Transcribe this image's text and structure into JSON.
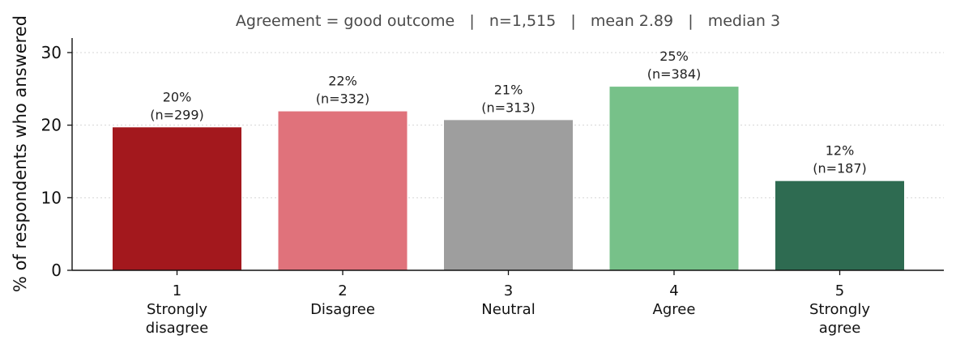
{
  "chart_data": {
    "type": "bar",
    "title": "Agreement = good outcome   |   n=1,515   |   mean 2.89   |   median 3",
    "ylabel": "% of respondents who answered",
    "xlabel": "",
    "ylim": [
      0,
      32
    ],
    "yticks": [
      "0",
      "10",
      "20",
      "30"
    ],
    "ytick_values": [
      0,
      10,
      20,
      30
    ],
    "grid": "horizontal dotted",
    "categories": [
      {
        "code": "1",
        "label_lines": [
          "Strongly",
          "disagree"
        ]
      },
      {
        "code": "2",
        "label_lines": [
          "Disagree"
        ]
      },
      {
        "code": "3",
        "label_lines": [
          "Neutral"
        ]
      },
      {
        "code": "4",
        "label_lines": [
          "Agree"
        ]
      },
      {
        "code": "5",
        "label_lines": [
          "Strongly",
          "agree"
        ]
      }
    ],
    "values": [
      19.7,
      21.9,
      20.7,
      25.3,
      12.3
    ],
    "counts": [
      299,
      332,
      313,
      384,
      187
    ],
    "data_labels": [
      [
        "20%",
        "(n=299)"
      ],
      [
        "22%",
        "(n=332)"
      ],
      [
        "21%",
        "(n=313)"
      ],
      [
        "25%",
        "(n=384)"
      ],
      [
        "12%",
        "(n=187)"
      ]
    ],
    "colors": [
      "#a3181d",
      "#e0727b",
      "#9e9e9e",
      "#77c189",
      "#2e6b51"
    ]
  }
}
